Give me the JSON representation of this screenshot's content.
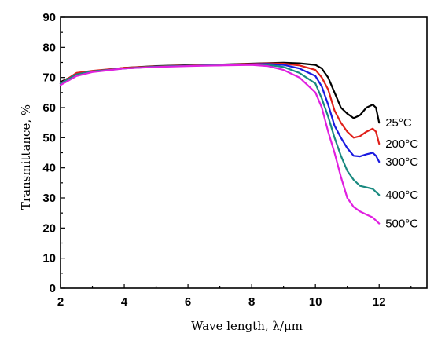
{
  "chart_data": {
    "type": "line",
    "xlabel": "Wave length, λ/μm",
    "ylabel": "Transmittance, %",
    "xlim": [
      2,
      13.5
    ],
    "ylim": [
      0,
      90
    ],
    "xticks": [
      2,
      4,
      6,
      8,
      10,
      12
    ],
    "yticks": [
      0,
      10,
      20,
      30,
      40,
      50,
      60,
      70,
      80,
      90
    ],
    "grid": false,
    "legend_position": "inline labels at right end of each curve",
    "series": [
      {
        "name": "25°C",
        "color": "#000000",
        "points": [
          [
            2,
            68.5
          ],
          [
            2.5,
            71
          ],
          [
            3,
            72
          ],
          [
            3.5,
            72.6
          ],
          [
            4,
            73.2
          ],
          [
            5,
            73.8
          ],
          [
            6,
            74.1
          ],
          [
            7,
            74.3
          ],
          [
            8,
            74.6
          ],
          [
            8.5,
            74.8
          ],
          [
            9,
            74.9
          ],
          [
            9.5,
            74.7
          ],
          [
            10,
            74.2
          ],
          [
            10.2,
            73
          ],
          [
            10.4,
            70
          ],
          [
            10.6,
            65
          ],
          [
            10.8,
            60
          ],
          [
            11,
            58
          ],
          [
            11.2,
            56.5
          ],
          [
            11.4,
            57.5
          ],
          [
            11.6,
            60
          ],
          [
            11.8,
            61
          ],
          [
            11.9,
            60
          ],
          [
            12,
            55
          ]
        ]
      },
      {
        "name": "200°C",
        "color": "#e0201a",
        "points": [
          [
            2,
            68
          ],
          [
            2.5,
            71.5
          ],
          [
            3,
            72.2
          ],
          [
            3.5,
            72.7
          ],
          [
            4,
            73.2
          ],
          [
            5,
            73.7
          ],
          [
            6,
            74
          ],
          [
            7,
            74.2
          ],
          [
            8,
            74.5
          ],
          [
            8.5,
            74.7
          ],
          [
            9,
            74.6
          ],
          [
            9.5,
            74
          ],
          [
            10,
            72.5
          ],
          [
            10.2,
            70
          ],
          [
            10.4,
            66
          ],
          [
            10.6,
            59
          ],
          [
            10.8,
            55
          ],
          [
            11,
            52
          ],
          [
            11.2,
            50
          ],
          [
            11.4,
            50.5
          ],
          [
            11.6,
            52
          ],
          [
            11.8,
            53
          ],
          [
            11.9,
            52
          ],
          [
            12,
            48
          ]
        ]
      },
      {
        "name": "300°C",
        "color": "#1a1ae0",
        "points": [
          [
            2,
            68
          ],
          [
            2.5,
            71
          ],
          [
            3,
            72
          ],
          [
            3.5,
            72.5
          ],
          [
            4,
            73
          ],
          [
            5,
            73.6
          ],
          [
            6,
            73.9
          ],
          [
            7,
            74.1
          ],
          [
            8,
            74.4
          ],
          [
            8.5,
            74.5
          ],
          [
            9,
            74.2
          ],
          [
            9.5,
            73
          ],
          [
            10,
            70.5
          ],
          [
            10.2,
            67
          ],
          [
            10.4,
            61
          ],
          [
            10.6,
            54
          ],
          [
            10.8,
            50
          ],
          [
            11,
            46.5
          ],
          [
            11.2,
            44
          ],
          [
            11.4,
            43.8
          ],
          [
            11.6,
            44.5
          ],
          [
            11.8,
            45
          ],
          [
            11.9,
            44
          ],
          [
            12,
            42
          ]
        ]
      },
      {
        "name": "400°C",
        "color": "#1a8a80",
        "points": [
          [
            2,
            68
          ],
          [
            2.5,
            71
          ],
          [
            3,
            72
          ],
          [
            3.5,
            72.5
          ],
          [
            4,
            73
          ],
          [
            5,
            73.6
          ],
          [
            6,
            73.9
          ],
          [
            7,
            74.1
          ],
          [
            8,
            74.3
          ],
          [
            8.5,
            74.2
          ],
          [
            9,
            73.5
          ],
          [
            9.5,
            71.5
          ],
          [
            10,
            68
          ],
          [
            10.2,
            63
          ],
          [
            10.4,
            57
          ],
          [
            10.6,
            50
          ],
          [
            10.8,
            44
          ],
          [
            11,
            39
          ],
          [
            11.2,
            36
          ],
          [
            11.4,
            34
          ],
          [
            11.6,
            33.5
          ],
          [
            11.8,
            33
          ],
          [
            12,
            31
          ]
        ]
      },
      {
        "name": "500°C",
        "color": "#e020e0",
        "points": [
          [
            2,
            67.5
          ],
          [
            2.5,
            70.5
          ],
          [
            3,
            71.8
          ],
          [
            3.5,
            72.4
          ],
          [
            4,
            73
          ],
          [
            5,
            73.5
          ],
          [
            6,
            73.8
          ],
          [
            7,
            74
          ],
          [
            8,
            74.2
          ],
          [
            8.5,
            73.8
          ],
          [
            9,
            72.5
          ],
          [
            9.5,
            70
          ],
          [
            10,
            65
          ],
          [
            10.2,
            60
          ],
          [
            10.4,
            52
          ],
          [
            10.6,
            45
          ],
          [
            10.8,
            37
          ],
          [
            11,
            30
          ],
          [
            11.2,
            27
          ],
          [
            11.4,
            25.5
          ],
          [
            11.6,
            24.5
          ],
          [
            11.8,
            23.5
          ],
          [
            12,
            21.5
          ]
        ]
      }
    ]
  }
}
